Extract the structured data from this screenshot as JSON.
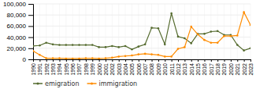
{
  "chart_data": {
    "type": "line",
    "x": [
      1990,
      1991,
      1992,
      1993,
      1994,
      1995,
      1996,
      1997,
      1998,
      1999,
      2000,
      2001,
      2002,
      2003,
      2004,
      2005,
      2006,
      2007,
      2008,
      2009,
      2010,
      2011,
      2012,
      2013,
      2014,
      2015,
      2016,
      2017,
      2018,
      2019,
      2020,
      2021,
      2022,
      2023
    ],
    "series": [
      {
        "name": "emigration",
        "color": "#556b2f",
        "marker": "circle",
        "values": [
          24000,
          25000,
          30000,
          27000,
          26000,
          26000,
          26000,
          26000,
          26000,
          26000,
          22000,
          22000,
          24000,
          22000,
          24000,
          18000,
          23000,
          27000,
          57000,
          56000,
          27000,
          83000,
          41000,
          38000,
          29000,
          46000,
          46000,
          50000,
          51000,
          44000,
          44000,
          26000,
          16000,
          20000
        ]
      },
      {
        "name": "immigration",
        "color": "#ff8c00",
        "marker": "circle",
        "values": [
          15000,
          8000,
          2000,
          2000,
          2000,
          1500,
          1500,
          1500,
          2000,
          2000,
          1500,
          2000,
          3000,
          5000,
          6000,
          7000,
          9000,
          10000,
          9000,
          8000,
          5000,
          5000,
          19000,
          22000,
          59000,
          45000,
          35000,
          30000,
          30000,
          42000,
          42000,
          43000,
          85000,
          62000
        ]
      }
    ],
    "xlim": [
      1990,
      2023
    ],
    "xticks": [
      1990,
      1991,
      1992,
      1993,
      1994,
      1995,
      1996,
      1997,
      1998,
      1999,
      2000,
      2001,
      2002,
      2003,
      2004,
      2005,
      2006,
      2007,
      2008,
      2009,
      2010,
      2011,
      2012,
      2013,
      2014,
      2015,
      2016,
      2017,
      2018,
      2019,
      2020,
      2021,
      2022,
      2023
    ],
    "ylim": [
      0,
      100000
    ],
    "yticks": [
      0,
      {
        "value": 20000,
        "label": "20,000"
      },
      {
        "value": 40000,
        "label": "40,000"
      },
      {
        "value": 60000,
        "label": "60,000"
      },
      {
        "value": 80000,
        "label": "80,000"
      },
      {
        "value": 100000,
        "label": "100,000"
      }
    ],
    "grid": true,
    "legend": "bottom"
  }
}
